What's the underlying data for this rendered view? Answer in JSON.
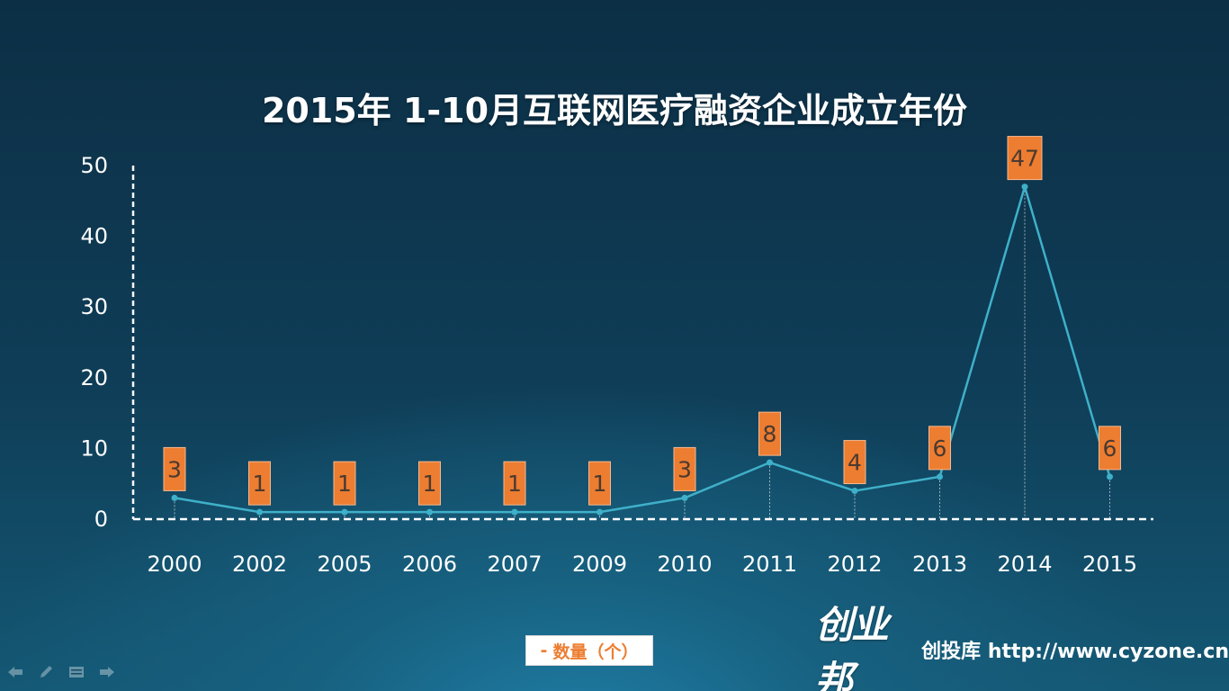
{
  "chart_data": {
    "type": "line",
    "title": "2015年 1-10月互联网医疗融资企业成立年份",
    "categories": [
      "2000",
      "2002",
      "2005",
      "2006",
      "2007",
      "2009",
      "2010",
      "2011",
      "2012",
      "2013",
      "2014",
      "2015"
    ],
    "series": [
      {
        "name": "数量（个）",
        "values": [
          3,
          1,
          1,
          1,
          1,
          1,
          3,
          8,
          4,
          6,
          47,
          6
        ]
      }
    ],
    "ylim": [
      0,
      50
    ],
    "yticks": [
      0,
      10,
      20,
      30,
      40,
      50
    ],
    "grid": false,
    "data_labels": true,
    "legend_position": "bottom",
    "colors": {
      "line": "#3fb0c9",
      "label_box": "#ed7d31",
      "axis": "#ffffff"
    }
  },
  "legend": {
    "dash": "-",
    "label": "数量（个）"
  },
  "watermark": {
    "logo": "创业邦",
    "text": "创投库 http://www.cyzone.cn"
  },
  "nav_icons": [
    "back-arrow-icon",
    "pen-icon",
    "menu-icon",
    "forward-arrow-icon"
  ]
}
